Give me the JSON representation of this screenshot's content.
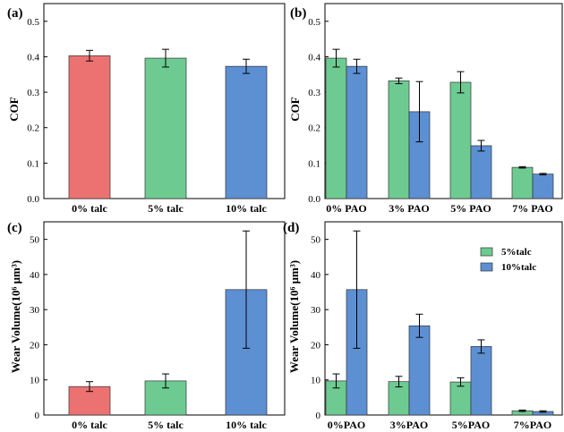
{
  "colors": {
    "red": "#ec7272",
    "green": "#6dcb91",
    "blue": "#5d8fd3",
    "axis": "#000000"
  },
  "chart_data": [
    {
      "id": "a",
      "type": "bar",
      "panel_label": "(a)",
      "ylabel": "COF",
      "ylim": [
        0,
        0.55
      ],
      "yticks": [
        0.0,
        0.1,
        0.2,
        0.3,
        0.4,
        0.5
      ],
      "ytick_labels": [
        "0.0",
        "0.1",
        "0.2",
        "0.3",
        "0.4",
        "0.5"
      ],
      "categories": [
        "0% talc",
        "5% talc",
        "10% talc"
      ],
      "bars": [
        {
          "category": "0% talc",
          "value": 0.403,
          "error": 0.015,
          "color": "red"
        },
        {
          "category": "5% talc",
          "value": 0.396,
          "error": 0.025,
          "color": "green"
        },
        {
          "category": "10% talc",
          "value": 0.373,
          "error": 0.02,
          "color": "blue"
        }
      ]
    },
    {
      "id": "b",
      "type": "bar",
      "panel_label": "(b)",
      "ylabel": "COF",
      "ylim": [
        0,
        0.55
      ],
      "yticks": [
        0.0,
        0.1,
        0.2,
        0.3,
        0.4,
        0.5
      ],
      "ytick_labels": [
        "0.0",
        "0.1",
        "0.2",
        "0.3",
        "0.4",
        "0.5"
      ],
      "categories": [
        "0% PAO",
        "3% PAO",
        "5% PAO",
        "7% PAO"
      ],
      "series": [
        {
          "name": "5% talc",
          "color": "green",
          "values": [
            0.396,
            0.332,
            0.328,
            0.088
          ],
          "errors": [
            0.025,
            0.008,
            0.03,
            0.002
          ]
        },
        {
          "name": "10% talc",
          "color": "blue",
          "values": [
            0.373,
            0.245,
            0.149,
            0.069
          ],
          "errors": [
            0.02,
            0.085,
            0.015,
            0.002
          ]
        }
      ]
    },
    {
      "id": "c",
      "type": "bar",
      "panel_label": "(c)",
      "ylabel": "Wear Volume(10⁶ μm³)",
      "ylim": [
        0,
        55
      ],
      "yticks": [
        0,
        10,
        20,
        30,
        40,
        50
      ],
      "ytick_labels": [
        "0",
        "10",
        "20",
        "30",
        "40",
        "50"
      ],
      "categories": [
        "0% talc",
        "5% talc",
        "10% talc"
      ],
      "bars": [
        {
          "category": "0% talc",
          "value": 8.1,
          "error": 1.4,
          "color": "red"
        },
        {
          "category": "5% talc",
          "value": 9.7,
          "error": 2.0,
          "color": "green"
        },
        {
          "category": "10% talc",
          "value": 35.7,
          "error": 16.7,
          "color": "blue"
        }
      ]
    },
    {
      "id": "d",
      "type": "bar",
      "panel_label": "(d)",
      "ylabel": "Wear Volume(10⁶ μm³)",
      "ylim": [
        0,
        55
      ],
      "yticks": [
        0,
        10,
        20,
        30,
        40,
        50
      ],
      "ytick_labels": [
        "0",
        "10",
        "20",
        "30",
        "40",
        "50"
      ],
      "categories": [
        "0%PAO",
        "3%PAO",
        "5%PAO",
        "7%PAO"
      ],
      "legend_position": "top-right",
      "series": [
        {
          "name": "5%talc",
          "color": "green",
          "values": [
            9.7,
            9.5,
            9.4,
            1.2
          ],
          "errors": [
            2.0,
            1.5,
            1.2,
            0.2
          ]
        },
        {
          "name": "10%talc",
          "color": "blue",
          "values": [
            35.7,
            25.4,
            19.5,
            1.0
          ],
          "errors": [
            16.7,
            3.3,
            1.9,
            0.2
          ]
        }
      ]
    }
  ]
}
